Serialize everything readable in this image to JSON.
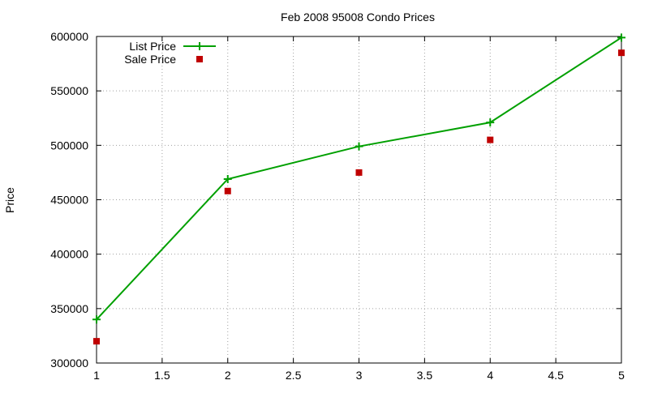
{
  "chart_data": {
    "type": "line",
    "title": "Feb 2008 95008 Condo Prices",
    "xlabel": "",
    "ylabel": "Price",
    "xlim": [
      1,
      5
    ],
    "ylim": [
      300000,
      600000
    ],
    "x_ticks": [
      "1",
      "1.5",
      "2",
      "2.5",
      "3",
      "3.5",
      "4",
      "4.5",
      "5"
    ],
    "y_ticks": [
      "300000",
      "350000",
      "400000",
      "450000",
      "500000",
      "550000",
      "600000"
    ],
    "grid": true,
    "legend_position": "top-left",
    "series": [
      {
        "name": "List Price",
        "style": "line+cross",
        "color": "#00a000",
        "x": [
          1,
          2,
          3,
          4,
          5
        ],
        "values": [
          340000,
          469000,
          499000,
          521000,
          599000
        ]
      },
      {
        "name": "Sale Price",
        "style": "square",
        "color": "#c00000",
        "x": [
          1,
          2,
          3,
          4,
          5
        ],
        "values": [
          320000,
          458000,
          475000,
          505000,
          585000
        ]
      }
    ]
  }
}
